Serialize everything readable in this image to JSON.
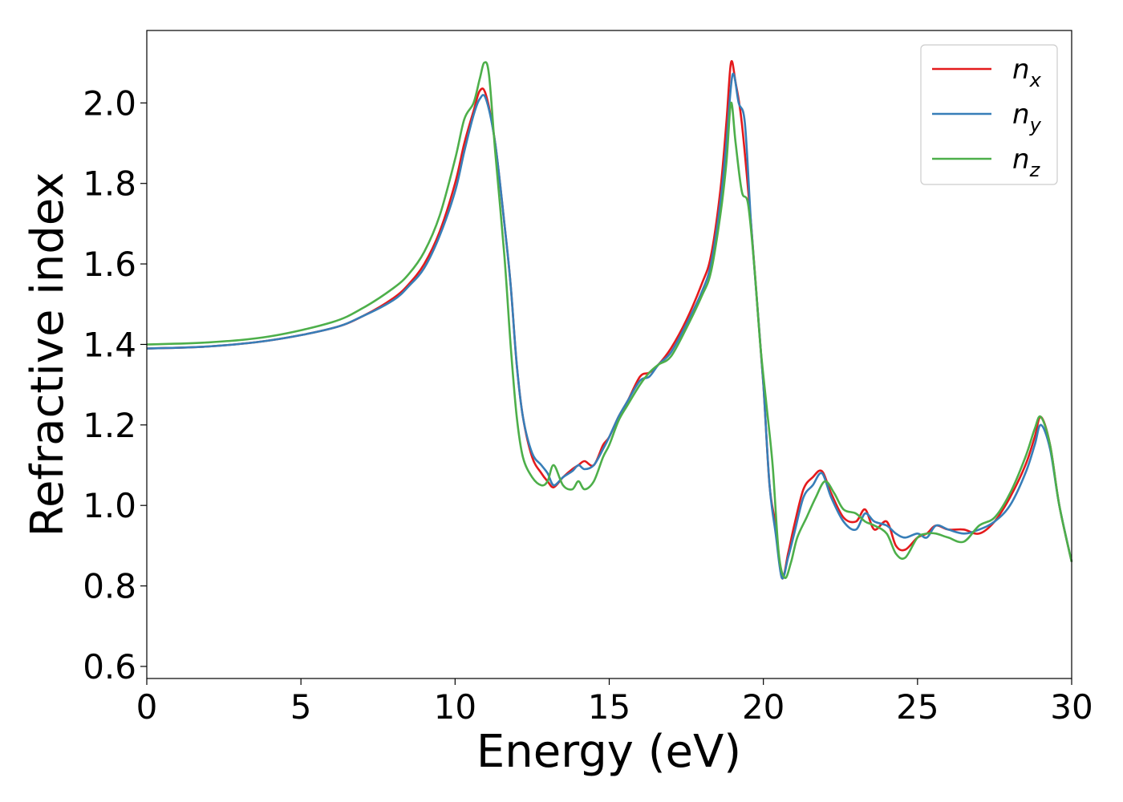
{
  "chart_data": {
    "type": "line",
    "xlabel": "Energy (eV)",
    "ylabel": "Refractive index",
    "xlim": [
      0,
      30
    ],
    "ylim": [
      0.57,
      2.18
    ],
    "xticks": [
      0,
      5,
      10,
      15,
      20,
      25,
      30
    ],
    "xtick_labels": [
      "0",
      "5",
      "10",
      "15",
      "20",
      "25",
      "30"
    ],
    "yticks": [
      0.6,
      0.8,
      1.0,
      1.2,
      1.4,
      1.6,
      1.8,
      2.0
    ],
    "ytick_labels": [
      "0.6",
      "0.8",
      "1.0",
      "1.2",
      "1.4",
      "1.6",
      "1.8",
      "2.0"
    ],
    "grid": false,
    "legend_position": "top-right",
    "series": [
      {
        "name": "n_x",
        "legend_base": "n",
        "legend_sub": "x",
        "color": "#e41a1c",
        "x": [
          0,
          2,
          4,
          6,
          7,
          8,
          8.5,
          9,
          9.5,
          10,
          10.3,
          10.6,
          10.8,
          11,
          11.3,
          11.6,
          11.8,
          12,
          12.2,
          12.5,
          12.8,
          13,
          13.2,
          13.5,
          13.8,
          14,
          14.2,
          14.5,
          14.8,
          15,
          15.3,
          15.6,
          16,
          16.3,
          16.6,
          17,
          17.5,
          18,
          18.3,
          18.6,
          18.8,
          18.95,
          19.1,
          19.3,
          19.6,
          19.8,
          20,
          20.2,
          20.4,
          20.6,
          20.8,
          21,
          21.3,
          21.6,
          21.9,
          22.2,
          22.6,
          23,
          23.3,
          23.6,
          24,
          24.3,
          24.6,
          25,
          25.3,
          25.6,
          26,
          26.5,
          27,
          27.5,
          28,
          28.5,
          28.8,
          29,
          29.3,
          29.6,
          30
        ],
        "values": [
          1.39,
          1.395,
          1.41,
          1.44,
          1.47,
          1.515,
          1.55,
          1.6,
          1.68,
          1.8,
          1.9,
          1.98,
          2.03,
          2.02,
          1.9,
          1.7,
          1.55,
          1.35,
          1.22,
          1.12,
          1.08,
          1.06,
          1.045,
          1.07,
          1.09,
          1.1,
          1.11,
          1.1,
          1.15,
          1.17,
          1.22,
          1.26,
          1.32,
          1.33,
          1.35,
          1.39,
          1.46,
          1.55,
          1.62,
          1.78,
          1.95,
          2.1,
          2.05,
          1.95,
          1.7,
          1.5,
          1.3,
          1.05,
          0.95,
          0.82,
          0.88,
          0.95,
          1.04,
          1.07,
          1.085,
          1.03,
          0.97,
          0.96,
          0.99,
          0.94,
          0.96,
          0.9,
          0.89,
          0.92,
          0.93,
          0.95,
          0.94,
          0.94,
          0.93,
          0.96,
          1.02,
          1.1,
          1.17,
          1.22,
          1.15,
          1.0,
          0.86
        ]
      },
      {
        "name": "n_y",
        "legend_base": "n",
        "legend_sub": "y",
        "color": "#377eb8",
        "x": [
          0,
          2,
          4,
          6,
          7,
          8,
          8.5,
          9,
          9.5,
          10,
          10.3,
          10.6,
          10.8,
          11,
          11.3,
          11.6,
          11.8,
          12,
          12.2,
          12.5,
          12.8,
          13,
          13.2,
          13.5,
          13.8,
          14,
          14.2,
          14.5,
          14.8,
          15,
          15.3,
          15.6,
          16,
          16.3,
          16.6,
          17,
          17.5,
          18,
          18.3,
          18.6,
          18.8,
          19,
          19.2,
          19.4,
          19.6,
          19.8,
          20,
          20.2,
          20.4,
          20.6,
          20.8,
          21,
          21.3,
          21.6,
          21.9,
          22.2,
          22.6,
          23,
          23.3,
          23.6,
          24,
          24.3,
          24.6,
          25,
          25.3,
          25.6,
          26,
          26.5,
          27,
          27.5,
          28,
          28.5,
          28.8,
          29,
          29.3,
          29.6,
          30
        ],
        "values": [
          1.39,
          1.395,
          1.41,
          1.44,
          1.47,
          1.51,
          1.545,
          1.59,
          1.67,
          1.78,
          1.88,
          1.97,
          2.01,
          2.01,
          1.9,
          1.7,
          1.55,
          1.35,
          1.22,
          1.13,
          1.1,
          1.08,
          1.05,
          1.07,
          1.085,
          1.1,
          1.09,
          1.1,
          1.14,
          1.17,
          1.22,
          1.26,
          1.31,
          1.32,
          1.35,
          1.38,
          1.45,
          1.53,
          1.6,
          1.75,
          1.9,
          2.07,
          2.0,
          1.95,
          1.7,
          1.5,
          1.3,
          1.05,
          0.93,
          0.82,
          0.87,
          0.93,
          1.02,
          1.05,
          1.08,
          1.02,
          0.96,
          0.94,
          0.98,
          0.96,
          0.95,
          0.93,
          0.92,
          0.93,
          0.92,
          0.95,
          0.94,
          0.93,
          0.94,
          0.96,
          1.0,
          1.08,
          1.15,
          1.2,
          1.14,
          1.0,
          0.86
        ]
      },
      {
        "name": "n_z",
        "legend_base": "n",
        "legend_sub": "z",
        "color": "#4daf4a",
        "x": [
          0,
          2,
          4,
          6,
          7,
          8,
          8.5,
          9,
          9.5,
          10,
          10.3,
          10.6,
          10.8,
          10.95,
          11.1,
          11.3,
          11.6,
          11.8,
          12,
          12.2,
          12.5,
          12.8,
          13,
          13.2,
          13.5,
          13.8,
          14,
          14.2,
          14.5,
          14.8,
          15,
          15.3,
          15.6,
          16,
          16.3,
          16.6,
          17,
          17.5,
          18,
          18.3,
          18.6,
          18.8,
          18.95,
          19.1,
          19.3,
          19.5,
          19.7,
          19.9,
          20.1,
          20.3,
          20.5,
          20.7,
          20.9,
          21.1,
          21.4,
          21.7,
          22,
          22.3,
          22.6,
          23,
          23.3,
          23.6,
          24,
          24.3,
          24.6,
          25,
          25.3,
          25.6,
          26,
          26.5,
          27,
          27.5,
          28,
          28.5,
          28.8,
          29,
          29.3,
          29.6,
          30
        ],
        "values": [
          1.4,
          1.405,
          1.42,
          1.455,
          1.49,
          1.54,
          1.575,
          1.63,
          1.72,
          1.86,
          1.96,
          2.0,
          2.06,
          2.1,
          2.07,
          1.88,
          1.62,
          1.4,
          1.22,
          1.12,
          1.07,
          1.05,
          1.06,
          1.1,
          1.05,
          1.04,
          1.06,
          1.04,
          1.06,
          1.12,
          1.15,
          1.21,
          1.25,
          1.3,
          1.33,
          1.35,
          1.37,
          1.44,
          1.52,
          1.58,
          1.72,
          1.85,
          2.0,
          1.9,
          1.78,
          1.75,
          1.6,
          1.4,
          1.25,
          1.1,
          0.88,
          0.82,
          0.86,
          0.92,
          0.97,
          1.02,
          1.06,
          1.03,
          0.99,
          0.98,
          0.96,
          0.95,
          0.93,
          0.88,
          0.87,
          0.92,
          0.93,
          0.93,
          0.92,
          0.91,
          0.95,
          0.97,
          1.03,
          1.12,
          1.19,
          1.22,
          1.15,
          1.0,
          0.86
        ]
      }
    ]
  }
}
